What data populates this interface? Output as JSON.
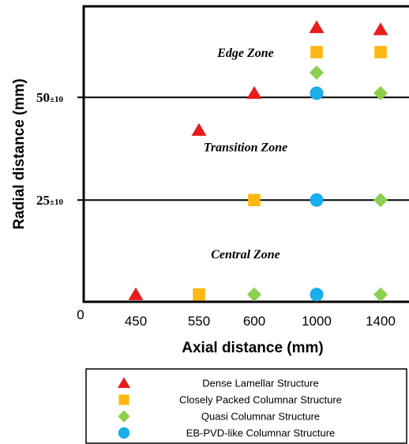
{
  "chart_data": {
    "type": "scatter",
    "xlabel": "Axial distance (mm)",
    "ylabel": "Radial distance (mm)",
    "origin_label": "0",
    "categories": [
      "450",
      "550",
      "600",
      "1000",
      "1400"
    ],
    "y_ticks": [
      {
        "main": "25",
        "sub": "±10",
        "value": 25
      },
      {
        "main": "50",
        "sub": "±10",
        "value": 50
      }
    ],
    "zones": [
      {
        "name": "Edge Zone",
        "y": 61
      },
      {
        "name": "Transition Zone",
        "y": 38
      },
      {
        "name": "Central Zone",
        "y": 12
      }
    ],
    "ylim": [
      0,
      70
    ],
    "grid": false,
    "legend_position": "bottom",
    "series": [
      {
        "name": "Dense Lamellar Structure",
        "marker": "triangle",
        "color": "#e81c1c",
        "points": [
          {
            "x": "450",
            "y": 2
          },
          {
            "x": "550",
            "y": 42
          },
          {
            "x": "600",
            "y": 51
          },
          {
            "x": "1000",
            "y": 67
          },
          {
            "x": "1400",
            "y": 66.5
          }
        ]
      },
      {
        "name": "Closely Packed Columnar Structure",
        "marker": "square",
        "color": "#fdb813",
        "points": [
          {
            "x": "550",
            "y": 2
          },
          {
            "x": "600",
            "y": 25
          },
          {
            "x": "1000",
            "y": 61
          },
          {
            "x": "1400",
            "y": 61
          }
        ]
      },
      {
        "name": "Quasi Columnar Structure",
        "marker": "diamond",
        "color": "#8dcf4e",
        "points": [
          {
            "x": "600",
            "y": 2
          },
          {
            "x": "1000",
            "y": 56
          },
          {
            "x": "1400",
            "y": 51
          },
          {
            "x": "1400",
            "y": 25
          },
          {
            "x": "1400",
            "y": 2
          }
        ]
      },
      {
        "name": "EB-PVD-like Columnar Structure",
        "marker": "circle",
        "color": "#1aaeea",
        "points": [
          {
            "x": "1000",
            "y": 51
          },
          {
            "x": "1000",
            "y": 25
          },
          {
            "x": "1000",
            "y": 2
          }
        ]
      }
    ]
  }
}
